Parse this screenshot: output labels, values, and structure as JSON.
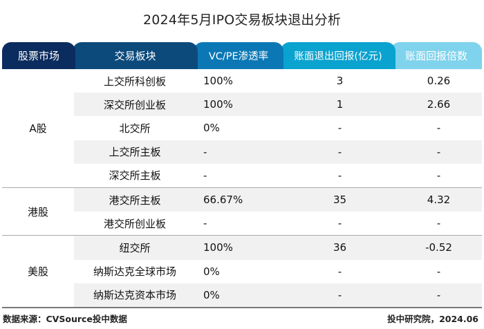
{
  "title": "2024年5月IPO交易板块退出分析",
  "header": {
    "columns": [
      "股票市场",
      "交易板块",
      "VC/PE渗透率",
      "账面退出回报(亿元)",
      "账面回报倍数"
    ],
    "colors": [
      "#0b2c5e",
      "#0c4a7c",
      "#0b78b5",
      "#0aa3d0",
      "#7fd3ec"
    ]
  },
  "groups": [
    {
      "market": "A股",
      "rows": [
        {
          "board": "上交所科创板",
          "rate": "100%",
          "return": "3",
          "multiple": "0.26"
        },
        {
          "board": "深交所创业板",
          "rate": "100%",
          "return": "1",
          "multiple": "2.66"
        },
        {
          "board": "北交所",
          "rate": "0%",
          "return": "-",
          "multiple": "-"
        },
        {
          "board": "上交所主板",
          "rate": "-",
          "return": "-",
          "multiple": "-"
        },
        {
          "board": "深交所主板",
          "rate": "-",
          "return": "-",
          "multiple": "-"
        }
      ]
    },
    {
      "market": "港股",
      "rows": [
        {
          "board": "港交所主板",
          "rate": "66.67%",
          "return": "35",
          "multiple": "4.32"
        },
        {
          "board": "港交所创业板",
          "rate": "-",
          "return": "-",
          "multiple": "-"
        }
      ]
    },
    {
      "market": "美股",
      "rows": [
        {
          "board": "纽交所",
          "rate": "100%",
          "return": "36",
          "multiple": "-0.52"
        },
        {
          "board": "纳斯达克全球市场",
          "rate": "0%",
          "return": "-",
          "multiple": "-"
        },
        {
          "board": "纳斯达克资本市场",
          "rate": "0%",
          "return": "-",
          "multiple": "-"
        }
      ]
    }
  ],
  "footer": {
    "source": "数据来源：CVSource投中数据",
    "credit": "投中研究院，2024.06"
  }
}
